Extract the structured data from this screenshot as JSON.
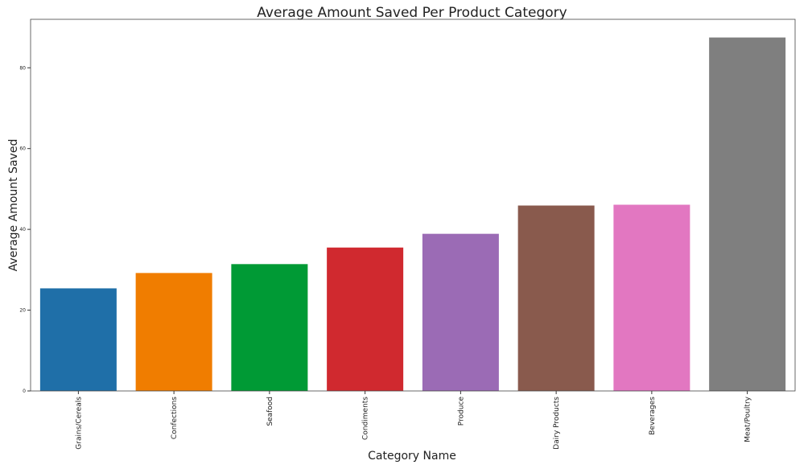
{
  "chart_data": {
    "type": "bar",
    "title": "Average Amount Saved Per Product Category",
    "xlabel": "Category Name",
    "ylabel": "Average Amount Saved",
    "categories": [
      "Grains/Cereals",
      "Confections",
      "Seafood",
      "Condiments",
      "Produce",
      "Dairy Products",
      "Beverages",
      "Meat/Poultry"
    ],
    "values": [
      25.4,
      29.2,
      31.4,
      35.5,
      38.9,
      45.9,
      46.1,
      87.5
    ],
    "colors": [
      "#1f6fa8",
      "#f07d00",
      "#009a35",
      "#d0292f",
      "#9b6bb5",
      "#895a4d",
      "#e277c1",
      "#7f7f7f"
    ],
    "ylim": [
      0,
      92
    ],
    "yticks": [
      0,
      20,
      40,
      60,
      80
    ],
    "grid": false,
    "legend": "none"
  }
}
